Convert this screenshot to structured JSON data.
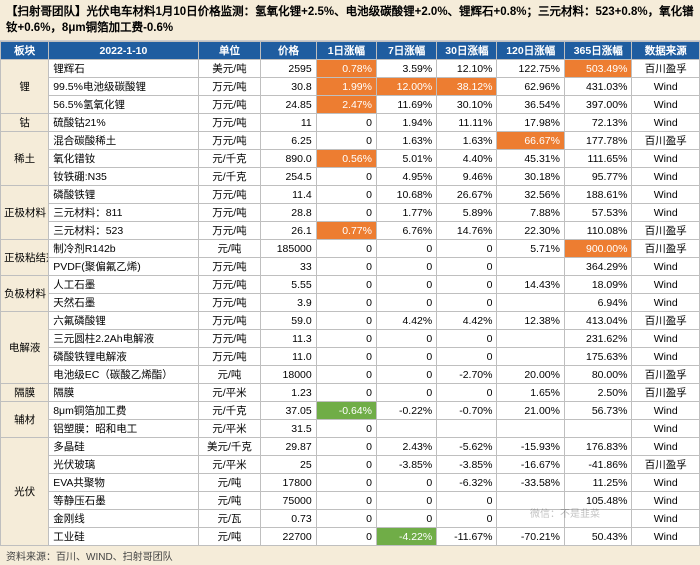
{
  "title": "【扫射哥团队】光伏电车材料1月10日价格监测：氢氧化锂+2.5%、电池级碳酸锂+2.0%、锂辉石+0.8%；三元材料：523+0.8%，氧化镨钕+0.6%，8μm铜箔加工费-0.6%",
  "footer": "资料来源：百川、WIND、扫射哥团队",
  "watermark": "微信：不是韭菜",
  "colors": {
    "header_bg": "#1f5da0",
    "header_fg": "#ffffff",
    "cat_bg": "#f5ecd9",
    "title_bg": "#f5ecd9",
    "hl_orange": "#ed7d31",
    "hl_green": "#70ad47",
    "border": "#bfbfbf"
  },
  "columns": [
    "板块",
    "2022-1-10",
    "单位",
    "价格",
    "1日涨幅",
    "7日涨幅",
    "30日涨幅",
    "120日涨幅",
    "365日涨幅",
    "数据来源"
  ],
  "categories": [
    {
      "name": "锂",
      "rows": [
        {
          "n": "锂辉石",
          "u": "美元/吨",
          "p": "2595",
          "d1": "0.78%",
          "h1": "o",
          "d7": "3.59%",
          "d30": "12.10%",
          "d120": "122.75%",
          "d365": "503.49%",
          "h365": "o",
          "src": "百川盈孚"
        },
        {
          "n": "99.5%电池级碳酸锂",
          "u": "万元/吨",
          "p": "30.8",
          "d1": "1.99%",
          "h1": "o",
          "d7": "12.00%",
          "h7": "o",
          "d30": "38.12%",
          "h30": "o",
          "d120": "62.96%",
          "d365": "431.03%",
          "src": "Wind"
        },
        {
          "n": "56.5%氢氧化锂",
          "u": "万元/吨",
          "p": "24.85",
          "d1": "2.47%",
          "h1": "o",
          "d7": "11.69%",
          "d30": "30.10%",
          "d120": "36.54%",
          "d365": "397.00%",
          "src": "Wind"
        }
      ]
    },
    {
      "name": "钴",
      "rows": [
        {
          "n": "硫酸钴21%",
          "u": "万元/吨",
          "p": "11",
          "d1": "0",
          "d7": "1.94%",
          "d30": "11.11%",
          "d120": "17.98%",
          "d365": "72.13%",
          "src": "Wind"
        }
      ]
    },
    {
      "name": "稀土",
      "rows": [
        {
          "n": "混合碳酸稀土",
          "u": "万元/吨",
          "p": "6.25",
          "d1": "0",
          "d7": "1.63%",
          "d30": "1.63%",
          "d120": "66.67%",
          "h120": "o",
          "d365": "177.78%",
          "src": "百川盈孚"
        },
        {
          "n": "氧化镨钕",
          "u": "元/千克",
          "p": "890.0",
          "d1": "0.56%",
          "h1": "o",
          "d7": "5.01%",
          "d30": "4.40%",
          "d120": "45.31%",
          "d365": "111.65%",
          "src": "Wind"
        },
        {
          "n": "钕铁硼:N35",
          "u": "元/千克",
          "p": "254.5",
          "d1": "0",
          "d7": "4.95%",
          "d30": "9.46%",
          "d120": "30.18%",
          "d365": "95.77%",
          "src": "Wind"
        }
      ]
    },
    {
      "name": "正极材料",
      "rows": [
        {
          "n": "磷酸铁锂",
          "u": "万元/吨",
          "p": "11.4",
          "d1": "0",
          "d7": "10.68%",
          "d30": "26.67%",
          "d120": "32.56%",
          "d365": "188.61%",
          "src": "Wind"
        },
        {
          "n": "三元材料：811",
          "u": "万元/吨",
          "p": "28.8",
          "d1": "0",
          "d7": "1.77%",
          "d30": "5.89%",
          "d120": "7.88%",
          "d365": "57.53%",
          "src": "Wind"
        },
        {
          "n": "三元材料：523",
          "u": "万元/吨",
          "p": "26.1",
          "d1": "0.77%",
          "h1": "o",
          "d7": "6.76%",
          "d30": "14.76%",
          "d120": "22.30%",
          "d365": "110.08%",
          "src": "百川盈孚"
        }
      ]
    },
    {
      "name": "正极粘结剂",
      "rows": [
        {
          "n": "制冷剂R142b",
          "u": "元/吨",
          "p": "185000",
          "d1": "0",
          "d7": "0",
          "d30": "0",
          "d120": "5.71%",
          "d365": "900.00%",
          "h365": "o",
          "src": "百川盈孚"
        },
        {
          "n": "PVDF(聚偏氟乙烯)",
          "u": "万元/吨",
          "p": "33",
          "d1": "0",
          "d7": "0",
          "d30": "0",
          "d120": "",
          "d365": "364.29%",
          "src": "Wind"
        }
      ]
    },
    {
      "name": "负极材料",
      "rows": [
        {
          "n": "人工石墨",
          "u": "万元/吨",
          "p": "5.55",
          "d1": "0",
          "d7": "0",
          "d30": "0",
          "d120": "14.43%",
          "d365": "18.09%",
          "src": "Wind"
        },
        {
          "n": "天然石墨",
          "u": "万元/吨",
          "p": "3.9",
          "d1": "0",
          "d7": "0",
          "d30": "0",
          "d120": "",
          "d365": "6.94%",
          "src": "Wind"
        }
      ]
    },
    {
      "name": "电解液",
      "rows": [
        {
          "n": "六氟磷酸锂",
          "u": "万元/吨",
          "p": "59.0",
          "d1": "0",
          "d7": "4.42%",
          "d30": "4.42%",
          "d120": "12.38%",
          "d365": "413.04%",
          "src": "百川盈孚"
        },
        {
          "n": "三元圆柱2.2Ah电解液",
          "u": "万元/吨",
          "p": "11.3",
          "d1": "0",
          "d7": "0",
          "d30": "0",
          "d120": "",
          "d365": "231.62%",
          "src": "Wind"
        },
        {
          "n": "磷酸铁锂电解液",
          "u": "万元/吨",
          "p": "11.0",
          "d1": "0",
          "d7": "0",
          "d30": "0",
          "d120": "",
          "d365": "175.63%",
          "src": "Wind"
        },
        {
          "n": "电池级EC（碳酸乙烯酯）",
          "u": "元/吨",
          "p": "18000",
          "d1": "0",
          "d7": "0",
          "d30": "-2.70%",
          "d120": "20.00%",
          "d365": "80.00%",
          "src": "百川盈孚"
        }
      ]
    },
    {
      "name": "隔膜",
      "rows": [
        {
          "n": "隔膜",
          "u": "元/平米",
          "p": "1.23",
          "d1": "0",
          "d7": "0",
          "d30": "0",
          "d120": "1.65%",
          "d365": "2.50%",
          "src": "百川盈孚"
        }
      ]
    },
    {
      "name": "辅材",
      "rows": [
        {
          "n": "8μm铜箔加工费",
          "u": "元/千克",
          "p": "37.05",
          "d1": "-0.64%",
          "h1": "g",
          "d7": "-0.22%",
          "d30": "-0.70%",
          "d120": "21.00%",
          "d365": "56.73%",
          "src": "Wind"
        },
        {
          "n": "铝塑膜：昭和电工",
          "u": "元/平米",
          "p": "31.5",
          "d1": "0",
          "d7": "",
          "d30": "",
          "d120": "",
          "d365": "",
          "src": "Wind"
        }
      ]
    },
    {
      "name": "光伏",
      "rows": [
        {
          "n": "多晶硅",
          "u": "美元/千克",
          "p": "29.87",
          "d1": "0",
          "d7": "2.43%",
          "d30": "-5.62%",
          "d120": "-15.93%",
          "d365": "176.83%",
          "src": "Wind"
        },
        {
          "n": "光伏玻璃",
          "u": "元/平米",
          "p": "25",
          "d1": "0",
          "d7": "-3.85%",
          "d30": "-3.85%",
          "d120": "-16.67%",
          "d365": "-41.86%",
          "src": "百川盈孚"
        },
        {
          "n": "EVA共聚物",
          "u": "元/吨",
          "p": "17800",
          "d1": "0",
          "d7": "0",
          "d30": "-6.32%",
          "d120": "-33.58%",
          "d365": "11.25%",
          "src": "Wind"
        },
        {
          "n": "等静压石墨",
          "u": "元/吨",
          "p": "75000",
          "d1": "0",
          "d7": "0",
          "d30": "0",
          "d120": "",
          "d365": "105.48%",
          "src": "Wind"
        },
        {
          "n": "金刚线",
          "u": "元/瓦",
          "p": "0.73",
          "d1": "0",
          "d7": "0",
          "d30": "0",
          "d120": "",
          "d365": "",
          "src": "Wind"
        },
        {
          "n": "工业硅",
          "u": "元/吨",
          "p": "22700",
          "d1": "0",
          "d7": "-4.22%",
          "h7": "g",
          "d30": "-11.67%",
          "d120": "-70.21%",
          "d365": "50.43%",
          "src": "Wind"
        }
      ]
    }
  ]
}
